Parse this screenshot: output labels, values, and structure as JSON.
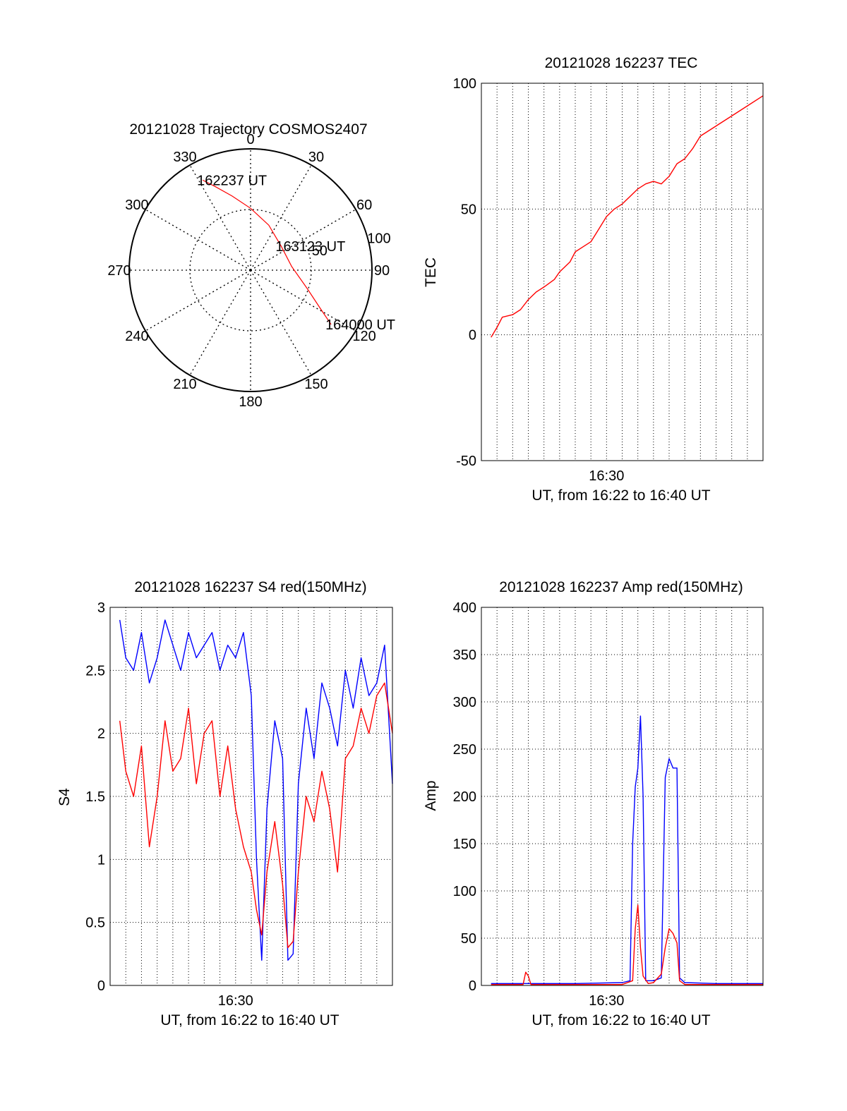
{
  "colors": {
    "red": "#ff0000",
    "blue": "#0000ff",
    "axis": "#000000",
    "grid": "#000000"
  },
  "chart_data": [
    {
      "type": "polar",
      "title": "20121028 Trajectory COSMOS2407",
      "angle_labels": [
        "0",
        "30",
        "60",
        "90",
        "120",
        "150",
        "180",
        "210",
        "240",
        "270",
        "300",
        "330"
      ],
      "angle_values": [
        0,
        30,
        60,
        90,
        120,
        150,
        180,
        210,
        240,
        270,
        300,
        330
      ],
      "radial_labels": [
        "50",
        "100"
      ],
      "radial_values": [
        50,
        100
      ],
      "rlim": [
        0,
        100
      ],
      "grid": true,
      "series": [
        {
          "color": "red",
          "points": [
            {
              "az": 332,
              "r": 84
            },
            {
              "az": 337,
              "r": 75
            },
            {
              "az": 346,
              "r": 63
            },
            {
              "az": 0,
              "r": 51
            },
            {
              "az": 22,
              "r": 40
            },
            {
              "az": 52,
              "r": 32
            },
            {
              "az": 85,
              "r": 34
            },
            {
              "az": 108,
              "r": 49
            },
            {
              "az": 119,
              "r": 66
            },
            {
              "az": 124,
              "r": 80
            }
          ]
        }
      ],
      "annotations": [
        {
          "text": "162237 UT",
          "az": 332,
          "r": 84
        },
        {
          "text": "163123 UT",
          "az": 52,
          "r": 32
        },
        {
          "text": "164000 UT",
          "az": 124,
          "r": 80
        }
      ]
    },
    {
      "type": "line",
      "title": "20121028 162237 TEC",
      "xlabel": "UT, from 16:22 to 16:40 UT",
      "ylabel": "TEC",
      "xlim": [
        "16:22:00",
        "16:40:00"
      ],
      "ylim": [
        -50,
        100
      ],
      "yticks": [
        -50,
        0,
        50,
        100
      ],
      "xtick_labels": [
        "16:30"
      ],
      "xtick_values": [
        "16:30:00"
      ],
      "grid": true,
      "series": [
        {
          "color": "red",
          "points": [
            [
              "16:22:37",
              -1
            ],
            [
              "16:23:00",
              3
            ],
            [
              "16:23:20",
              7
            ],
            [
              "16:24:00",
              8
            ],
            [
              "16:24:30",
              10
            ],
            [
              "16:25:00",
              14
            ],
            [
              "16:25:30",
              17
            ],
            [
              "16:26:00",
              19
            ],
            [
              "16:26:40",
              22
            ],
            [
              "16:27:00",
              25
            ],
            [
              "16:27:40",
              29
            ],
            [
              "16:28:00",
              33
            ],
            [
              "16:28:30",
              35
            ],
            [
              "16:29:00",
              37
            ],
            [
              "16:29:30",
              42
            ],
            [
              "16:30:00",
              47
            ],
            [
              "16:30:30",
              50
            ],
            [
              "16:31:00",
              52
            ],
            [
              "16:31:30",
              55
            ],
            [
              "16:32:00",
              58
            ],
            [
              "16:32:30",
              60
            ],
            [
              "16:33:00",
              61
            ],
            [
              "16:33:30",
              60
            ],
            [
              "16:34:00",
              63
            ],
            [
              "16:34:30",
              68
            ],
            [
              "16:35:00",
              70
            ],
            [
              "16:35:30",
              74
            ],
            [
              "16:36:00",
              79
            ],
            [
              "16:37:00",
              83
            ],
            [
              "16:38:00",
              87
            ],
            [
              "16:39:00",
              91
            ],
            [
              "16:40:00",
              95
            ]
          ]
        }
      ]
    },
    {
      "type": "line",
      "title": "20121028 162237 S4 red(150MHz)",
      "xlabel": "UT, from 16:22 to 16:40 UT",
      "ylabel": "S4",
      "xlim": [
        "16:22:00",
        "16:40:00"
      ],
      "ylim": [
        0,
        3
      ],
      "yticks": [
        0,
        0.5,
        1,
        1.5,
        2,
        2.5,
        3
      ],
      "ytick_labels": [
        "0",
        "0.5",
        "1",
        "1.5",
        "2",
        "2.5",
        "3"
      ],
      "xtick_labels": [
        "16:30"
      ],
      "xtick_values": [
        "16:30:00"
      ],
      "grid": true,
      "series": [
        {
          "color": "blue",
          "points": [
            [
              "16:22:37",
              2.9
            ],
            [
              "16:23:00",
              2.6
            ],
            [
              "16:23:30",
              2.5
            ],
            [
              "16:24:00",
              2.8
            ],
            [
              "16:24:30",
              2.4
            ],
            [
              "16:25:00",
              2.6
            ],
            [
              "16:25:30",
              2.9
            ],
            [
              "16:26:00",
              2.7
            ],
            [
              "16:26:30",
              2.5
            ],
            [
              "16:27:00",
              2.8
            ],
            [
              "16:27:30",
              2.6
            ],
            [
              "16:28:00",
              2.7
            ],
            [
              "16:28:30",
              2.8
            ],
            [
              "16:29:00",
              2.5
            ],
            [
              "16:29:30",
              2.7
            ],
            [
              "16:30:00",
              2.6
            ],
            [
              "16:30:30",
              2.8
            ],
            [
              "16:31:00",
              2.3
            ],
            [
              "16:31:20",
              1.0
            ],
            [
              "16:31:40",
              0.2
            ],
            [
              "16:32:00",
              1.4
            ],
            [
              "16:32:30",
              2.1
            ],
            [
              "16:33:00",
              1.8
            ],
            [
              "16:33:20",
              0.2
            ],
            [
              "16:33:40",
              0.25
            ],
            [
              "16:34:00",
              1.6
            ],
            [
              "16:34:30",
              2.2
            ],
            [
              "16:35:00",
              1.8
            ],
            [
              "16:35:30",
              2.4
            ],
            [
              "16:36:00",
              2.2
            ],
            [
              "16:36:30",
              1.9
            ],
            [
              "16:37:00",
              2.5
            ],
            [
              "16:37:30",
              2.2
            ],
            [
              "16:38:00",
              2.6
            ],
            [
              "16:38:30",
              2.3
            ],
            [
              "16:39:00",
              2.4
            ],
            [
              "16:39:30",
              2.7
            ],
            [
              "16:40:00",
              1.6
            ]
          ]
        },
        {
          "color": "red",
          "points": [
            [
              "16:22:37",
              2.1
            ],
            [
              "16:23:00",
              1.7
            ],
            [
              "16:23:30",
              1.5
            ],
            [
              "16:24:00",
              1.9
            ],
            [
              "16:24:30",
              1.1
            ],
            [
              "16:25:00",
              1.5
            ],
            [
              "16:25:30",
              2.1
            ],
            [
              "16:26:00",
              1.7
            ],
            [
              "16:26:30",
              1.8
            ],
            [
              "16:27:00",
              2.2
            ],
            [
              "16:27:30",
              1.6
            ],
            [
              "16:28:00",
              2.0
            ],
            [
              "16:28:30",
              2.1
            ],
            [
              "16:29:00",
              1.5
            ],
            [
              "16:29:30",
              1.9
            ],
            [
              "16:30:00",
              1.4
            ],
            [
              "16:30:30",
              1.1
            ],
            [
              "16:31:00",
              0.9
            ],
            [
              "16:31:20",
              0.6
            ],
            [
              "16:31:40",
              0.4
            ],
            [
              "16:32:00",
              0.9
            ],
            [
              "16:32:30",
              1.3
            ],
            [
              "16:33:00",
              0.8
            ],
            [
              "16:33:20",
              0.3
            ],
            [
              "16:33:40",
              0.35
            ],
            [
              "16:34:00",
              0.9
            ],
            [
              "16:34:30",
              1.5
            ],
            [
              "16:35:00",
              1.3
            ],
            [
              "16:35:30",
              1.7
            ],
            [
              "16:36:00",
              1.4
            ],
            [
              "16:36:30",
              0.9
            ],
            [
              "16:37:00",
              1.8
            ],
            [
              "16:37:30",
              1.9
            ],
            [
              "16:38:00",
              2.2
            ],
            [
              "16:38:30",
              2.0
            ],
            [
              "16:39:00",
              2.3
            ],
            [
              "16:39:30",
              2.4
            ],
            [
              "16:40:00",
              2.0
            ]
          ]
        }
      ]
    },
    {
      "type": "line",
      "title": "20121028 162237 Amp red(150MHz)",
      "xlabel": "UT, from 16:22 to 16:40 UT",
      "ylabel": "Amp",
      "xlim": [
        "16:22:00",
        "16:40:00"
      ],
      "ylim": [
        0,
        400
      ],
      "yticks": [
        0,
        50,
        100,
        150,
        200,
        250,
        300,
        350,
        400
      ],
      "xtick_labels": [
        "16:30"
      ],
      "xtick_values": [
        "16:30:00"
      ],
      "grid": true,
      "series": [
        {
          "color": "blue",
          "points": [
            [
              "16:22:37",
              2
            ],
            [
              "16:25:00",
              2
            ],
            [
              "16:28:00",
              2
            ],
            [
              "16:31:00",
              3
            ],
            [
              "16:31:30",
              5
            ],
            [
              "16:31:40",
              150
            ],
            [
              "16:31:50",
              210
            ],
            [
              "16:32:00",
              230
            ],
            [
              "16:32:10",
              285
            ],
            [
              "16:32:20",
              200
            ],
            [
              "16:32:30",
              5
            ],
            [
              "16:33:00",
              5
            ],
            [
              "16:33:30",
              8
            ],
            [
              "16:33:45",
              220
            ],
            [
              "16:34:00",
              240
            ],
            [
              "16:34:15",
              230
            ],
            [
              "16:34:30",
              230
            ],
            [
              "16:34:40",
              8
            ],
            [
              "16:35:00",
              3
            ],
            [
              "16:37:00",
              2
            ],
            [
              "16:40:00",
              2
            ]
          ]
        },
        {
          "color": "red",
          "points": [
            [
              "16:22:37",
              1
            ],
            [
              "16:24:00",
              1
            ],
            [
              "16:24:40",
              1
            ],
            [
              "16:24:50",
              14
            ],
            [
              "16:25:00",
              10
            ],
            [
              "16:25:10",
              1
            ],
            [
              "16:28:00",
              1
            ],
            [
              "16:31:00",
              1
            ],
            [
              "16:31:40",
              5
            ],
            [
              "16:31:50",
              60
            ],
            [
              "16:32:00",
              85
            ],
            [
              "16:32:10",
              40
            ],
            [
              "16:32:20",
              10
            ],
            [
              "16:32:40",
              2
            ],
            [
              "16:33:00",
              3
            ],
            [
              "16:33:30",
              12
            ],
            [
              "16:33:45",
              40
            ],
            [
              "16:34:00",
              60
            ],
            [
              "16:34:15",
              55
            ],
            [
              "16:34:30",
              45
            ],
            [
              "16:34:40",
              5
            ],
            [
              "16:35:00",
              1
            ],
            [
              "16:40:00",
              1
            ]
          ]
        }
      ]
    }
  ]
}
